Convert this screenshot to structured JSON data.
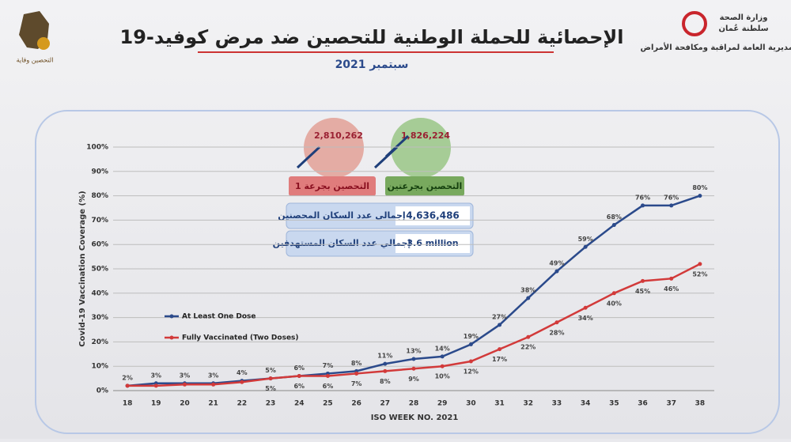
{
  "header": {
    "title": "الإحصائية للحملة الوطنية للتحصين ضد مرض كوفيد-19",
    "subtitle": "سبتمبر 2021",
    "ministry": "وزارة الصحة",
    "country": "سلطنة عُمان",
    "directorate": "المديرية العامة لمراقبة ومكافحة الأمراض",
    "logo_text": "التحصين وقاية"
  },
  "stats": {
    "dose1": {
      "value": "2,810,262",
      "label": "التحصين بجرعة 1"
    },
    "dose2": {
      "value": "1,826,224",
      "label": "التحصين بجرعتين"
    },
    "vaccinated_total": {
      "value": "4,636,486",
      "label": "إجمالي عدد السكان المحصنين"
    },
    "target_total": {
      "value": "3.6 million",
      "label": "إجمالي عدد السكان المستهدفين"
    }
  },
  "chart_data": {
    "type": "line",
    "x_label": "ISO WEEK NO. 2021",
    "y_label": "Covid-19 Vaccination Coverage (%)",
    "categories": [
      "18",
      "19",
      "20",
      "21",
      "22",
      "23",
      "24",
      "25",
      "26",
      "27",
      "28",
      "29",
      "30",
      "31",
      "32",
      "33",
      "34",
      "35",
      "36",
      "37",
      "38"
    ],
    "ylim": [
      0,
      100
    ],
    "yticks": [
      {
        "value": 0,
        "label": "0%"
      },
      {
        "value": 10,
        "label": "10%"
      },
      {
        "value": 20,
        "label": "20%"
      },
      {
        "value": 30,
        "label": "30%"
      },
      {
        "value": 40,
        "label": "40%"
      },
      {
        "value": 50,
        "label": "50%"
      },
      {
        "value": 60,
        "label": "60%"
      },
      {
        "value": 70,
        "label": "70%"
      },
      {
        "value": 80,
        "label": "80%"
      },
      {
        "value": 90,
        "label": "90%"
      },
      {
        "value": 100,
        "label": "100%"
      }
    ],
    "grid": true,
    "series": [
      {
        "name": "At Least One Dose",
        "color": "#2b4a8b",
        "values": [
          2,
          3,
          3,
          3,
          4,
          5,
          6,
          7,
          8,
          11,
          13,
          14,
          19,
          27,
          38,
          49,
          59,
          68,
          76,
          76,
          80
        ],
        "value_labels": [
          "2%",
          "3%",
          "3%",
          "3%",
          "4%",
          "5%",
          "6%",
          "7%",
          "8%",
          "11%",
          "13%",
          "14%",
          "19%",
          "27%",
          "38%",
          "49%",
          "59%",
          "68%",
          "76%",
          "76%",
          "80%"
        ]
      },
      {
        "name": "Fully Vaccinated (Two Doses)",
        "color": "#d23a3a",
        "values": [
          2,
          2,
          2.5,
          2.5,
          3.5,
          5,
          6,
          6,
          7,
          8,
          9,
          10,
          12,
          17,
          22,
          28,
          34,
          40,
          45,
          46,
          52
        ],
        "value_labels": [
          null,
          null,
          null,
          null,
          null,
          "5%",
          "6%",
          "6%",
          "7%",
          "8%",
          "9%",
          "10%",
          "12%",
          "17%",
          "22%",
          "28%",
          "34%",
          "40%",
          "45%",
          "46%",
          "52%"
        ]
      }
    ]
  }
}
